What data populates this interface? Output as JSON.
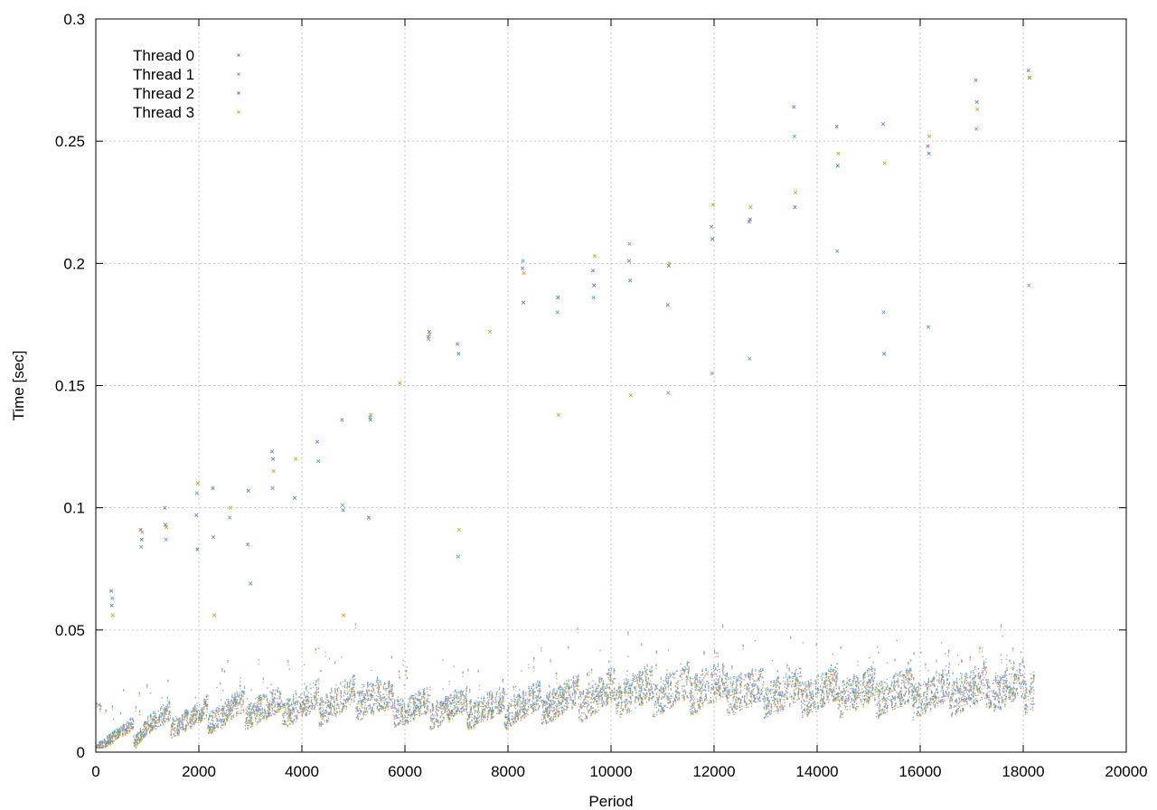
{
  "chart_data": {
    "type": "scatter",
    "title": "",
    "xlabel": "Period",
    "ylabel": "Time [sec]",
    "xlim": [
      0,
      20000
    ],
    "ylim": [
      0,
      0.3
    ],
    "x_ticks": [
      0,
      2000,
      4000,
      6000,
      8000,
      10000,
      12000,
      14000,
      16000,
      18000,
      20000
    ],
    "y_ticks": [
      0,
      0.05,
      0.1,
      0.15,
      0.2,
      0.25,
      0.3
    ],
    "x_tick_labels": [
      "0",
      "2000",
      "4000",
      "6000",
      "8000",
      "10000",
      "12000",
      "14000",
      "16000",
      "18000",
      "20000"
    ],
    "y_tick_labels": [
      "0",
      "0.05",
      "0.1",
      "0.15",
      "0.2",
      "0.25",
      "0.3"
    ],
    "grid": true,
    "legend_position": "top-left",
    "x_range_of_data": [
      0,
      18200
    ],
    "series": [
      {
        "name": "Thread 0",
        "color": "#9a6fd1",
        "points": [
          [
            300,
            0.066
          ],
          [
            870,
            0.091
          ],
          [
            1340,
            0.1
          ],
          [
            1950,
            0.097
          ],
          [
            2280,
            0.088
          ],
          [
            2950,
            0.085
          ],
          [
            3420,
            0.123
          ],
          [
            4300,
            0.127
          ],
          [
            4780,
            0.136
          ],
          [
            5300,
            0.096
          ],
          [
            6450,
            0.17
          ],
          [
            7020,
            0.167
          ],
          [
            8280,
            0.198
          ],
          [
            9650,
            0.197
          ],
          [
            10350,
            0.201
          ],
          [
            11100,
            0.183
          ],
          [
            11950,
            0.215
          ],
          [
            12680,
            0.217
          ],
          [
            13550,
            0.264
          ],
          [
            14380,
            0.256
          ],
          [
            15280,
            0.257
          ],
          [
            16150,
            0.248
          ],
          [
            17080,
            0.275
          ],
          [
            18100,
            0.279
          ]
        ],
        "band": [
          [
            0,
            0.0055
          ],
          [
            800,
            0.008
          ],
          [
            1000,
            0.012
          ],
          [
            2000,
            0.014
          ],
          [
            3000,
            0.018
          ],
          [
            4000,
            0.019
          ],
          [
            5300,
            0.023
          ],
          [
            6000,
            0.018
          ],
          [
            8000,
            0.018
          ],
          [
            10000,
            0.024
          ],
          [
            11900,
            0.027
          ],
          [
            13000,
            0.024
          ],
          [
            14000,
            0.025
          ],
          [
            16000,
            0.024
          ],
          [
            18000,
            0.027
          ]
        ]
      },
      {
        "name": "Thread 1",
        "color": "#5aa9c7",
        "points": [
          [
            320,
            0.063
          ],
          [
            880,
            0.084
          ],
          [
            1360,
            0.087
          ],
          [
            1960,
            0.106
          ],
          [
            2600,
            0.096
          ],
          [
            3000,
            0.069
          ],
          [
            3430,
            0.108
          ],
          [
            4320,
            0.119
          ],
          [
            4790,
            0.101
          ],
          [
            5320,
            0.137
          ],
          [
            6460,
            0.169
          ],
          [
            7030,
            0.08
          ],
          [
            8290,
            0.201
          ],
          [
            8960,
            0.18
          ],
          [
            9660,
            0.186
          ],
          [
            10360,
            0.208
          ],
          [
            11110,
            0.147
          ],
          [
            11960,
            0.155
          ],
          [
            12690,
            0.161
          ],
          [
            13560,
            0.252
          ],
          [
            14390,
            0.205
          ],
          [
            15290,
            0.18
          ],
          [
            16160,
            0.174
          ],
          [
            17090,
            0.255
          ],
          [
            18110,
            0.191
          ]
        ],
        "band": [
          [
            0,
            0.006
          ],
          [
            800,
            0.009
          ],
          [
            1000,
            0.013
          ],
          [
            2000,
            0.015
          ],
          [
            3000,
            0.019
          ],
          [
            4000,
            0.02
          ],
          [
            5300,
            0.024
          ],
          [
            6000,
            0.019
          ],
          [
            8000,
            0.019
          ],
          [
            10000,
            0.025
          ],
          [
            11900,
            0.028
          ],
          [
            13000,
            0.025
          ],
          [
            14000,
            0.026
          ],
          [
            16000,
            0.025
          ],
          [
            18000,
            0.028
          ]
        ]
      },
      {
        "name": "Thread 2",
        "color": "#4f8cab",
        "points": [
          [
            310,
            0.06
          ],
          [
            890,
            0.087
          ],
          [
            1350,
            0.093
          ],
          [
            1970,
            0.083
          ],
          [
            2270,
            0.108
          ],
          [
            2960,
            0.107
          ],
          [
            3440,
            0.12
          ],
          [
            3860,
            0.104
          ],
          [
            4800,
            0.099
          ],
          [
            5330,
            0.136
          ],
          [
            6470,
            0.172
          ],
          [
            7040,
            0.163
          ],
          [
            8300,
            0.184
          ],
          [
            8970,
            0.186
          ],
          [
            9670,
            0.191
          ],
          [
            10370,
            0.193
          ],
          [
            11120,
            0.199
          ],
          [
            11970,
            0.21
          ],
          [
            12700,
            0.218
          ],
          [
            13570,
            0.223
          ],
          [
            14400,
            0.24
          ],
          [
            15300,
            0.163
          ],
          [
            16170,
            0.245
          ],
          [
            17100,
            0.266
          ],
          [
            18120,
            0.276
          ]
        ],
        "band": [
          [
            0,
            0.0058
          ],
          [
            800,
            0.0085
          ],
          [
            1000,
            0.0125
          ],
          [
            2000,
            0.0145
          ],
          [
            3000,
            0.0185
          ],
          [
            4000,
            0.0195
          ],
          [
            5300,
            0.0235
          ],
          [
            6000,
            0.0185
          ],
          [
            8000,
            0.0185
          ],
          [
            10000,
            0.0245
          ],
          [
            11900,
            0.0275
          ],
          [
            13000,
            0.0245
          ],
          [
            14000,
            0.0255
          ],
          [
            16000,
            0.0245
          ],
          [
            18000,
            0.0275
          ]
        ]
      },
      {
        "name": "Thread 3",
        "color": "#d9a521",
        "points": [
          [
            330,
            0.056
          ],
          [
            900,
            0.09
          ],
          [
            1370,
            0.092
          ],
          [
            1980,
            0.11
          ],
          [
            2300,
            0.056
          ],
          [
            2610,
            0.1
          ],
          [
            3450,
            0.115
          ],
          [
            3880,
            0.12
          ],
          [
            4810,
            0.056
          ],
          [
            5340,
            0.138
          ],
          [
            5900,
            0.151
          ],
          [
            6480,
            0.171
          ],
          [
            7050,
            0.091
          ],
          [
            7650,
            0.172
          ],
          [
            8310,
            0.196
          ],
          [
            8980,
            0.138
          ],
          [
            9680,
            0.203
          ],
          [
            10380,
            0.146
          ],
          [
            11130,
            0.2
          ],
          [
            11980,
            0.224
          ],
          [
            12710,
            0.223
          ],
          [
            13580,
            0.229
          ],
          [
            14410,
            0.245
          ],
          [
            15310,
            0.241
          ],
          [
            16180,
            0.252
          ],
          [
            17110,
            0.263
          ],
          [
            18130,
            0.276
          ]
        ],
        "band": [
          [
            0,
            0.005
          ],
          [
            800,
            0.0075
          ],
          [
            1000,
            0.0115
          ],
          [
            2000,
            0.0135
          ],
          [
            3000,
            0.0175
          ],
          [
            4000,
            0.0185
          ],
          [
            5300,
            0.0225
          ],
          [
            6000,
            0.0175
          ],
          [
            8000,
            0.0175
          ],
          [
            10000,
            0.0235
          ],
          [
            11900,
            0.0265
          ],
          [
            13000,
            0.0235
          ],
          [
            14000,
            0.0245
          ],
          [
            16000,
            0.0235
          ],
          [
            18000,
            0.0265
          ]
        ]
      }
    ]
  }
}
